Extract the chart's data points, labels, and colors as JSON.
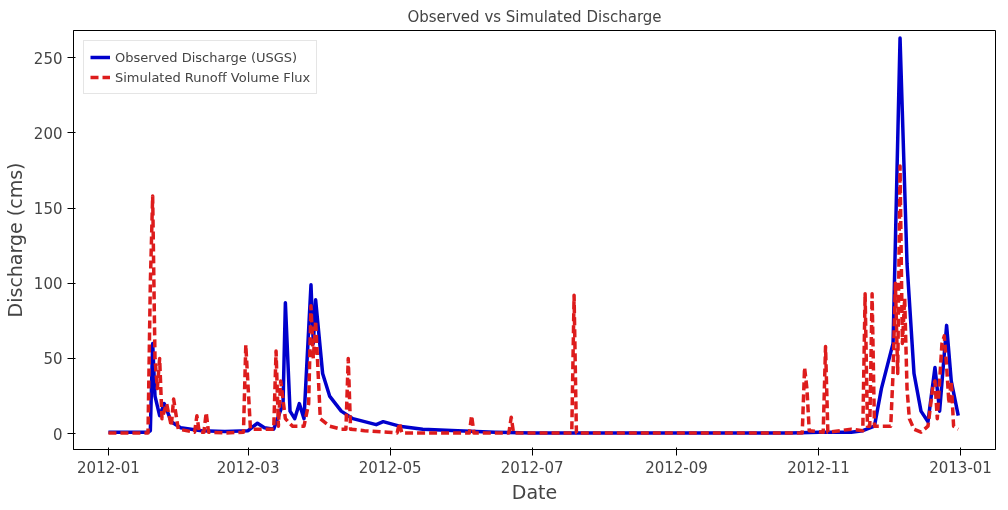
{
  "chart_data": {
    "type": "line",
    "title": "Observed vs Simulated Discharge",
    "xlabel": "Date",
    "ylabel": "Discharge (cms)",
    "xlim": [
      "2011-12-17",
      "2013-01-16"
    ],
    "ylim": [
      -10.5,
      268
    ],
    "xticks": [
      "2012-01",
      "2012-03",
      "2012-05",
      "2012-07",
      "2012-09",
      "2012-11",
      "2013-01"
    ],
    "yticks": [
      0,
      50,
      100,
      150,
      200,
      250
    ],
    "grid": false,
    "legend": "top left",
    "series": [
      {
        "name": "Observed Discharge (USGS)",
        "color": "#0000cc",
        "line_style": "solid",
        "x": [
          "2012-01-01",
          "2012-01-18",
          "2012-01-19",
          "2012-01-20",
          "2012-01-21",
          "2012-01-23",
          "2012-01-25",
          "2012-01-28",
          "2012-02-01",
          "2012-02-10",
          "2012-02-20",
          "2012-03-01",
          "2012-03-05",
          "2012-03-08",
          "2012-03-12",
          "2012-03-16",
          "2012-03-17",
          "2012-03-19",
          "2012-03-21",
          "2012-03-23",
          "2012-03-25",
          "2012-03-28",
          "2012-03-29",
          "2012-03-30",
          "2012-04-02",
          "2012-04-05",
          "2012-04-10",
          "2012-04-15",
          "2012-04-25",
          "2012-04-28",
          "2012-05-05",
          "2012-05-15",
          "2012-05-30",
          "2012-06-15",
          "2012-07-01",
          "2012-10-20",
          "2012-11-01",
          "2012-11-15",
          "2012-11-20",
          "2012-11-25",
          "2012-11-28",
          "2012-12-03",
          "2012-12-06",
          "2012-12-09",
          "2012-12-12",
          "2012-12-15",
          "2012-12-18",
          "2012-12-21",
          "2012-12-23",
          "2012-12-26",
          "2012-12-28",
          "2012-12-31"
        ],
        "values": [
          1,
          1,
          2,
          60,
          25,
          12,
          20,
          8,
          4,
          2,
          1.5,
          2,
          7,
          4,
          3,
          20,
          87,
          15,
          10,
          20,
          10,
          99,
          60,
          89,
          40,
          25,
          15,
          10,
          6,
          8,
          5,
          3,
          2,
          1,
          0.5,
          0.5,
          1,
          1,
          2,
          5,
          30,
          60,
          263,
          113,
          40,
          15,
          8,
          44,
          15,
          72,
          35,
          12
        ]
      },
      {
        "name": "Simulated Runoff Volume Flux",
        "color": "#dd1c1c",
        "line_style": "dashed",
        "x": [
          "2012-01-01",
          "2012-01-18",
          "2012-01-19",
          "2012-01-20",
          "2012-01-21",
          "2012-01-22",
          "2012-01-23",
          "2012-01-24",
          "2012-01-26",
          "2012-01-28",
          "2012-01-29",
          "2012-01-31",
          "2012-02-07",
          "2012-02-08",
          "2012-02-09",
          "2012-02-11",
          "2012-02-12",
          "2012-02-13",
          "2012-02-20",
          "2012-02-28",
          "2012-02-29",
          "2012-03-02",
          "2012-03-10",
          "2012-03-12",
          "2012-03-13",
          "2012-03-14",
          "2012-03-15",
          "2012-03-17",
          "2012-03-20",
          "2012-03-25",
          "2012-03-27",
          "2012-03-28",
          "2012-03-29",
          "2012-03-30",
          "2012-04-01",
          "2012-04-05",
          "2012-04-10",
          "2012-04-12",
          "2012-04-13",
          "2012-04-14",
          "2012-04-20",
          "2012-04-30",
          "2012-05-04",
          "2012-05-05",
          "2012-05-06",
          "2012-06-04",
          "2012-06-05",
          "2012-06-06",
          "2012-06-21",
          "2012-06-22",
          "2012-06-23",
          "2012-07-18",
          "2012-07-19",
          "2012-07-20",
          "2012-10-25",
          "2012-10-26",
          "2012-10-27",
          "2012-10-28",
          "2012-11-03",
          "2012-11-04",
          "2012-11-05",
          "2012-11-15",
          "2012-11-20",
          "2012-11-21",
          "2012-11-22",
          "2012-11-23",
          "2012-11-24",
          "2012-11-25",
          "2012-12-02",
          "2012-12-03",
          "2012-12-04",
          "2012-12-05",
          "2012-12-06",
          "2012-12-07",
          "2012-12-08",
          "2012-12-09",
          "2012-12-10",
          "2012-12-12",
          "2012-12-15",
          "2012-12-18",
          "2012-12-20",
          "2012-12-21",
          "2012-12-22",
          "2012-12-24",
          "2012-12-25",
          "2012-12-26",
          "2012-12-27",
          "2012-12-28",
          "2012-12-29",
          "2012-12-31"
        ],
        "values": [
          0.5,
          0.5,
          100,
          158,
          50,
          30,
          50,
          10,
          20,
          5,
          23,
          3,
          1,
          12,
          1,
          1,
          14,
          1,
          0.5,
          1,
          59,
          3,
          3,
          3,
          55,
          5,
          35,
          10,
          5,
          5,
          20,
          85,
          50,
          75,
          10,
          5,
          3,
          3,
          50,
          3,
          2,
          1,
          0.5,
          7,
          0.5,
          0.5,
          12,
          0.5,
          0.5,
          11,
          0.5,
          0.5,
          92,
          0.5,
          0.5,
          44,
          30,
          2,
          1,
          58,
          1,
          3,
          2,
          93,
          5,
          5,
          93,
          5,
          5,
          40,
          100,
          40,
          178,
          60,
          90,
          30,
          10,
          3,
          1,
          5,
          30,
          35,
          10,
          60,
          65,
          45,
          20,
          35,
          5,
          3
        ]
      }
    ]
  }
}
